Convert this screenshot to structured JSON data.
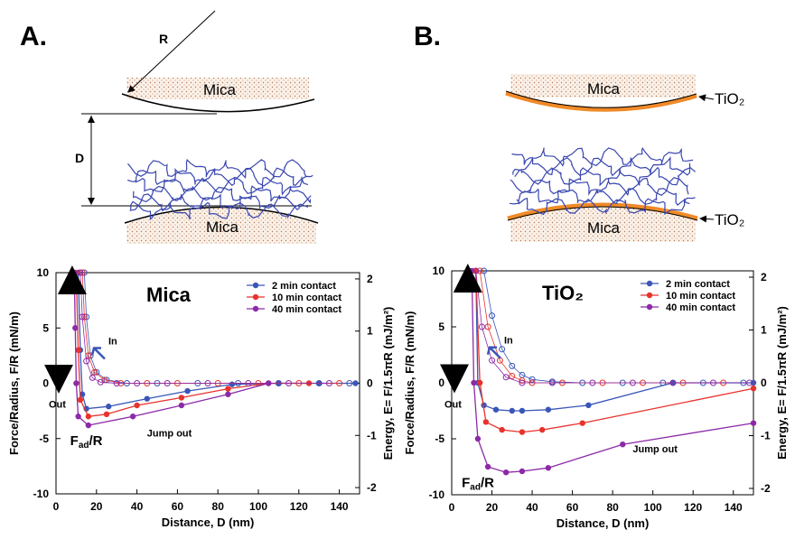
{
  "diagrams": {
    "a": {
      "panel": "A.",
      "radius": "R",
      "top_surface": "Mica",
      "distance": "D",
      "bottom_surface": "Mica"
    },
    "b": {
      "panel": "B.",
      "top_surface": "Mica",
      "top_coating": "TiO₂",
      "bottom_surface": "Mica",
      "bottom_coating": "TiO₂"
    }
  },
  "chart_data": [
    {
      "type": "line",
      "x_label": "Distance, D (nm)",
      "y_label": "Force/Radius, F/R (mN/m)",
      "y2_label": "Energy,  E= F/1.5πR (mJ/m²)",
      "xlim": [
        0,
        150
      ],
      "xticks": [
        0,
        20,
        40,
        60,
        80,
        100,
        120,
        140
      ],
      "ylim": [
        -10,
        10
      ],
      "yticks": [
        -10,
        -5,
        0,
        5,
        10
      ],
      "y2lim": [
        -2.12,
        2.12
      ],
      "y2ticks": [
        -2,
        -1,
        0,
        1,
        2
      ],
      "legend": "upper right",
      "annotations": {
        "label": "Mica",
        "in": "In",
        "out": "Out",
        "jump": "Jump out",
        "fad": [
          "F",
          "ad",
          "/R"
        ]
      },
      "series": [
        {
          "name": "2 min contact",
          "color": "#3a56b8",
          "x": [
            11,
            12,
            13,
            15,
            26,
            45,
            65,
            87,
            110,
            130,
            148
          ],
          "values": [
            10,
            3,
            -1,
            -2.3,
            -2.1,
            -1.4,
            -0.7,
            -0.1,
            0,
            0,
            0
          ],
          "x_in": [
            14,
            15,
            17,
            20,
            25,
            35,
            50,
            70,
            90,
            110,
            130,
            145
          ],
          "values_in": [
            10,
            6,
            2.5,
            1,
            0.3,
            0,
            0,
            0,
            0,
            0,
            0,
            0
          ]
        },
        {
          "name": "10 min contact",
          "color": "#e8322c",
          "x": [
            10,
            11,
            12,
            16,
            25,
            40,
            62,
            85,
            105,
            125
          ],
          "values": [
            10,
            3,
            -1.5,
            -3,
            -2.8,
            -2,
            -1.3,
            -0.5,
            0,
            0
          ],
          "x_in": [
            13,
            14,
            16,
            19,
            24,
            32,
            45,
            60,
            80,
            100,
            120,
            140
          ],
          "values_in": [
            10,
            6,
            2.5,
            1,
            0.3,
            0,
            0,
            0,
            0,
            0,
            0,
            0
          ]
        },
        {
          "name": "40 min contact",
          "color": "#8c2aa8",
          "x": [
            9,
            9.5,
            10,
            11,
            16,
            38,
            62,
            85,
            105
          ],
          "values": [
            10,
            5,
            0,
            -3,
            -3.8,
            -3,
            -2,
            -1,
            0
          ],
          "x_in": [
            12,
            13,
            15,
            18,
            22,
            30,
            40,
            55,
            75,
            95,
            115,
            135
          ],
          "values_in": [
            10,
            6,
            2,
            0.5,
            0.1,
            0,
            0,
            0,
            0,
            0,
            0,
            0
          ]
        }
      ]
    },
    {
      "type": "line",
      "x_label": "Distance, D (nm)",
      "y_label": "Force/Radius, F/R (mN/m)",
      "y2_label": "Energy,  E= F/1.5πR (mJ/m²)",
      "xlim": [
        0,
        150
      ],
      "xticks": [
        0,
        20,
        40,
        60,
        80,
        100,
        120,
        140
      ],
      "ylim": [
        -10,
        10
      ],
      "yticks": [
        -10,
        -5,
        0,
        5,
        10
      ],
      "y2lim": [
        -2.12,
        2.12
      ],
      "y2ticks": [
        -2,
        -1,
        0,
        1,
        2
      ],
      "legend": "upper right",
      "annotations": {
        "label": "TiO₂",
        "in": "In",
        "out": "Out",
        "jump": "Jump out",
        "fad": [
          "F",
          "ad",
          "/R"
        ]
      },
      "series": [
        {
          "name": "2 min contact",
          "color": "#3a56b8",
          "x": [
            12,
            13,
            16,
            22,
            30,
            35,
            48,
            68,
            110,
            150
          ],
          "values": [
            10,
            0,
            -2,
            -2.4,
            -2.5,
            -2.5,
            -2.4,
            -2,
            0,
            0
          ],
          "x_in": [
            16,
            20,
            25,
            30,
            35,
            40,
            50,
            65,
            85,
            105,
            125,
            145
          ],
          "values_in": [
            10,
            6,
            3,
            1.5,
            0.7,
            0.3,
            0.1,
            0,
            0,
            0,
            0,
            0
          ]
        },
        {
          "name": "10 min contact",
          "color": "#e8322c",
          "x": [
            12,
            14,
            17,
            25,
            35,
            45,
            65,
            150
          ],
          "values": [
            10,
            0,
            -3.5,
            -4.2,
            -4.4,
            -4.2,
            -3.6,
            -0.5
          ],
          "x_in": [
            14,
            18,
            24,
            30,
            35,
            40,
            55,
            75,
            95,
            115,
            135
          ],
          "values_in": [
            10,
            5,
            2,
            0.6,
            0.2,
            0,
            0,
            0,
            0,
            0,
            0
          ]
        },
        {
          "name": "40 min contact",
          "color": "#8c2aa8",
          "x": [
            10,
            11,
            13,
            18,
            27,
            35,
            48,
            85,
            150
          ],
          "values": [
            10,
            0,
            -5,
            -7.5,
            -8,
            -7.9,
            -7.6,
            -5.5,
            -3.6
          ],
          "x_in": [
            12,
            15,
            20,
            27,
            35,
            50,
            70,
            90,
            110,
            130,
            148
          ],
          "values_in": [
            10,
            5,
            2,
            0.5,
            0,
            0,
            0,
            0,
            0,
            0,
            0
          ]
        }
      ]
    }
  ]
}
